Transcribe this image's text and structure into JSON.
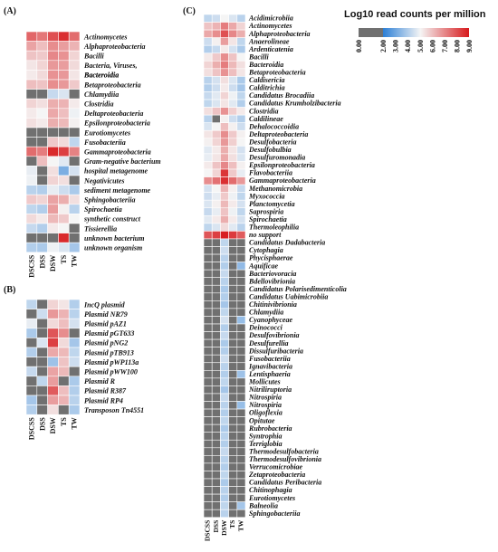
{
  "chart_data": [
    {
      "type": "heatmap",
      "panel_label": "(A)",
      "columns": [
        "DSCSS",
        "DSS",
        "DSW",
        "TS",
        "TW"
      ],
      "rows": [
        "Actinomycetes",
        "Alphaproteobacteria",
        "Bacilli",
        "Bacteria, Viruses,",
        "Bacteroidia",
        "Betaproteobacteria",
        "Chlamydiia",
        "Clostridia",
        "Deltaproteobacteria",
        "Epsilonproteobacteria",
        "Eurotiomycetes",
        "Fusobacteriia",
        "Gammaproteobacteria",
        "Gram-negative bacterium",
        "hospital metagenome",
        "Negativicutes",
        "sediment metagenome",
        "Sphingobacteriia",
        "Spirochaetia",
        "synthetic construct",
        "Tissierellia",
        "unknown bacterium",
        "unknown organism"
      ],
      "values": [
        [
          7.6,
          7.3,
          8.0,
          8.6,
          7.5
        ],
        [
          6.5,
          6.0,
          6.9,
          6.6,
          6.2
        ],
        [
          5.9,
          5.8,
          7.0,
          6.8,
          5.6
        ],
        [
          5.3,
          5.6,
          6.7,
          6.6,
          5.5
        ],
        [
          5.2,
          5.5,
          6.8,
          6.7,
          5.3
        ],
        [
          6.0,
          5.9,
          6.9,
          6.7,
          5.8
        ],
        [
          1.0,
          1.0,
          4.3,
          4.6,
          1.0
        ],
        [
          5.6,
          5.4,
          6.3,
          6.2,
          5.2
        ],
        [
          5.2,
          5.0,
          6.4,
          6.0,
          4.9
        ],
        [
          5.4,
          5.2,
          6.3,
          6.1,
          5.1
        ],
        [
          1.0,
          1.0,
          1.0,
          1.0,
          1.0
        ],
        [
          1.0,
          1.0,
          5.8,
          5.5,
          4.2
        ],
        [
          7.5,
          7.2,
          8.7,
          8.3,
          7.1
        ],
        [
          1.0,
          6.0,
          5.0,
          4.7,
          1.0
        ],
        [
          4.8,
          1.0,
          5.4,
          3.2,
          4.5
        ],
        [
          4.9,
          1.0,
          5.6,
          5.4,
          1.0
        ],
        [
          4.1,
          4.0,
          4.8,
          4.4,
          3.9
        ],
        [
          5.8,
          5.6,
          6.5,
          6.3,
          5.4
        ],
        [
          4.2,
          4.0,
          6.6,
          5.1,
          4.1
        ],
        [
          5.5,
          5.2,
          6.1,
          5.8,
          5.0
        ],
        [
          4.3,
          4.0,
          5.2,
          5.0,
          1.0
        ],
        [
          1.0,
          1.0,
          1.0,
          8.7,
          1.0
        ],
        [
          4.0,
          3.9,
          4.9,
          4.6,
          3.8
        ]
      ]
    },
    {
      "type": "heatmap",
      "panel_label": "(B)",
      "columns": [
        "DSCSS",
        "DSS",
        "DSW",
        "TS",
        "TW"
      ],
      "rows": [
        "IncQ plasmid",
        "Plasmid NR79",
        "Plasmid pAZ1",
        "Plasmid pGT633",
        "Plasmid pNG2",
        "Plasmid pTB913",
        "Plasmid pWP113a",
        "Plasmid pWW100",
        "Plasmid R",
        "Plasmid R387",
        "Plasmid RP4",
        "Transposon Tn4551"
      ],
      "values": [
        [
          4.2,
          1.0,
          5.6,
          5.3,
          4.0
        ],
        [
          1.0,
          4.4,
          6.7,
          6.2,
          4.1
        ],
        [
          4.8,
          1.0,
          5.5,
          6.0,
          4.5
        ],
        [
          3.9,
          1.0,
          7.9,
          6.9,
          1.0
        ],
        [
          1.0,
          4.6,
          8.3,
          5.5,
          3.8
        ],
        [
          4.0,
          1.0,
          6.4,
          6.1,
          4.2
        ],
        [
          1.0,
          1.0,
          3.7,
          5.9,
          4.4
        ],
        [
          4.3,
          1.0,
          6.5,
          6.1,
          1.0
        ],
        [
          1.0,
          4.2,
          6.6,
          1.0,
          3.9
        ],
        [
          1.0,
          1.0,
          7.8,
          6.0,
          4.0
        ],
        [
          3.8,
          1.0,
          6.6,
          6.2,
          4.1
        ],
        [
          4.0,
          1.0,
          5.4,
          1.0,
          3.9
        ]
      ]
    },
    {
      "type": "heatmap",
      "panel_label": "(C)",
      "columns": [
        "DSCSS",
        "DSS",
        "DSW",
        "TS",
        "TW"
      ],
      "rows": [
        "Acidimicrobiia",
        "Actinomycetes",
        "Alphaproteobacteria",
        "Anaerolineae",
        "Ardenticatenia",
        "Bacilli",
        "Bacteroidia",
        "Betaproteobacteria",
        "Caldisericia",
        "Calditrichia",
        "Candidatus Brocadiia",
        "Candidatus Krumholzibacteria",
        "Clostridia",
        "Caldilineae",
        "Dehalococcoidia",
        "Deltaproteobacteria",
        "Desulfobacteria",
        "Desulfobulbia",
        "Desulfuromonadia",
        "Epsilonproteobacteria",
        "Flavobacteriia",
        "Gammaproteobacteria",
        "Methanomicrobia",
        "Myxococcia",
        "Planctomycetia",
        "Saprospiria",
        "Spirochaetia",
        "Thermoleophilia",
        "no support",
        "Candidatus Dadabacteria",
        "Cytophagia",
        "Phycisphaerae",
        "Aquificae",
        "Bacteriovoracia",
        "Bdellovibrionia",
        "Candidatus Polarisedimenticolia",
        "Candidatus Uabimicrobiia",
        "Chitinivibrionia",
        "Chlamydiia",
        "Cyanophyceae",
        "Deinococci",
        "Desulfovibrionia",
        "Desulfurellia",
        "Dissulfuribacteria",
        "Fusobacteriia",
        "Ignavibacteria",
        "Lentisphaeria",
        "Mollicutes",
        "Nitriliruptoria",
        "Nitrospiria",
        "Nitrospiria",
        "Oligoflexia",
        "Opitutae",
        "Rubrobacteria",
        "Syntrophia",
        "Terriglobia",
        "Thermodesulfobacteria",
        "Thermodesulfovibrionia",
        "Verrucomicrobiae",
        "Zetaproteobacteria",
        "Candidatus Peribacteria",
        "Chitinophagia",
        "Eurotiomycetes",
        "Balneolia",
        "Sphingobacteriia"
      ],
      "values": [
        [
          4.2,
          4.4,
          5.0,
          4.6,
          4.1
        ],
        [
          5.9,
          6.2,
          7.2,
          6.4,
          5.6
        ],
        [
          6.4,
          6.9,
          8.0,
          7.0,
          6.3
        ],
        [
          4.4,
          5.1,
          6.6,
          5.3,
          4.2
        ],
        [
          4.0,
          4.3,
          5.2,
          4.5,
          3.9
        ],
        [
          5.2,
          5.8,
          6.9,
          5.9,
          5.0
        ],
        [
          5.6,
          6.3,
          7.2,
          6.1,
          5.4
        ],
        [
          5.4,
          5.9,
          6.8,
          6.0,
          5.3
        ],
        [
          4.1,
          4.5,
          5.4,
          4.6,
          3.9
        ],
        [
          4.0,
          4.4,
          5.2,
          4.4,
          3.8
        ],
        [
          4.3,
          4.7,
          5.6,
          4.9,
          4.2
        ],
        [
          4.2,
          4.6,
          5.3,
          4.7,
          4.0
        ],
        [
          5.4,
          5.9,
          6.8,
          5.7,
          5.2
        ],
        [
          4.1,
          1.0,
          5.1,
          4.4,
          4.0
        ],
        [
          4.6,
          5.0,
          6.0,
          5.1,
          4.4
        ],
        [
          5.3,
          5.8,
          6.9,
          5.8,
          5.1
        ],
        [
          5.1,
          5.6,
          6.7,
          5.7,
          5.0
        ],
        [
          4.7,
          5.2,
          6.3,
          5.3,
          4.5
        ],
        [
          4.8,
          5.3,
          6.4,
          5.4,
          4.6
        ],
        [
          5.2,
          5.9,
          7.0,
          6.0,
          5.1
        ],
        [
          5.0,
          5.6,
          8.5,
          5.8,
          4.8
        ],
        [
          6.9,
          7.4,
          8.6,
          7.5,
          6.7
        ],
        [
          4.5,
          5.0,
          6.2,
          5.1,
          4.3
        ],
        [
          4.4,
          4.8,
          5.8,
          4.9,
          4.2
        ],
        [
          4.6,
          5.1,
          6.1,
          5.2,
          4.5
        ],
        [
          4.3,
          4.8,
          5.9,
          4.9,
          4.2
        ],
        [
          4.7,
          5.2,
          6.3,
          5.2,
          4.5
        ],
        [
          4.2,
          4.6,
          5.5,
          4.7,
          4.1
        ],
        [
          7.9,
          8.3,
          8.9,
          8.4,
          7.8
        ],
        [
          1.0,
          1.0,
          4.2,
          1.0,
          1.0
        ],
        [
          1.0,
          1.0,
          4.4,
          1.0,
          1.0
        ],
        [
          1.0,
          1.0,
          4.1,
          1.0,
          1.0
        ],
        [
          1.0,
          1.0,
          4.0,
          1.0,
          3.5
        ],
        [
          1.0,
          1.0,
          4.3,
          1.0,
          1.0
        ],
        [
          1.0,
          1.0,
          4.1,
          1.0,
          1.0
        ],
        [
          1.0,
          1.0,
          3.9,
          1.0,
          1.0
        ],
        [
          1.0,
          1.0,
          4.0,
          1.0,
          1.0
        ],
        [
          1.0,
          1.0,
          3.8,
          1.0,
          1.0
        ],
        [
          1.0,
          1.0,
          4.2,
          1.0,
          1.0
        ],
        [
          1.0,
          1.0,
          4.5,
          1.0,
          3.6
        ],
        [
          1.0,
          1.0,
          4.0,
          1.0,
          1.0
        ],
        [
          1.0,
          1.0,
          4.3,
          1.0,
          1.0
        ],
        [
          1.0,
          1.0,
          3.9,
          1.0,
          1.0
        ],
        [
          1.0,
          1.0,
          4.0,
          1.0,
          1.0
        ],
        [
          1.0,
          1.0,
          4.4,
          1.0,
          1.0
        ],
        [
          1.0,
          1.0,
          4.1,
          1.0,
          1.0
        ],
        [
          1.0,
          1.0,
          4.0,
          1.0,
          3.7
        ],
        [
          1.0,
          1.0,
          4.2,
          1.0,
          1.0
        ],
        [
          1.0,
          1.0,
          3.8,
          1.0,
          1.0
        ],
        [
          1.0,
          1.0,
          4.3,
          1.0,
          1.0
        ],
        [
          1.0,
          1.0,
          4.1,
          1.0,
          3.6
        ],
        [
          1.0,
          1.0,
          4.0,
          1.0,
          1.0
        ],
        [
          1.0,
          1.0,
          4.2,
          1.0,
          1.0
        ],
        [
          1.0,
          1.0,
          3.9,
          1.0,
          1.0
        ],
        [
          1.0,
          1.0,
          4.1,
          1.0,
          1.0
        ],
        [
          1.0,
          1.0,
          4.0,
          1.0,
          1.0
        ],
        [
          1.0,
          1.0,
          4.3,
          1.0,
          1.0
        ],
        [
          1.0,
          1.0,
          4.1,
          1.0,
          1.0
        ],
        [
          1.0,
          1.0,
          4.0,
          1.0,
          1.0
        ],
        [
          1.0,
          1.0,
          4.2,
          1.0,
          1.0
        ],
        [
          1.0,
          1.0,
          3.9,
          1.0,
          1.0
        ],
        [
          1.0,
          1.0,
          4.1,
          1.0,
          1.0
        ],
        [
          1.0,
          1.0,
          4.0,
          1.0,
          1.0
        ],
        [
          1.0,
          1.0,
          4.2,
          1.0,
          3.8
        ],
        [
          1.0,
          1.0,
          4.1,
          1.0,
          1.0
        ]
      ]
    }
  ],
  "panelA_extra_label": "Bacteroidia",
  "legend": {
    "title": "Log10 read counts per million",
    "ticks": [
      "0.00",
      "2.00",
      "3.00",
      "4.00",
      "5.00",
      "6.00",
      "7.00",
      "8.00",
      "9.00"
    ],
    "range": [
      0,
      9
    ],
    "colors": {
      "low": "#707070",
      "blue": "#2c7fd6",
      "white": "#f5f5f5",
      "red": "#d7191c"
    }
  }
}
